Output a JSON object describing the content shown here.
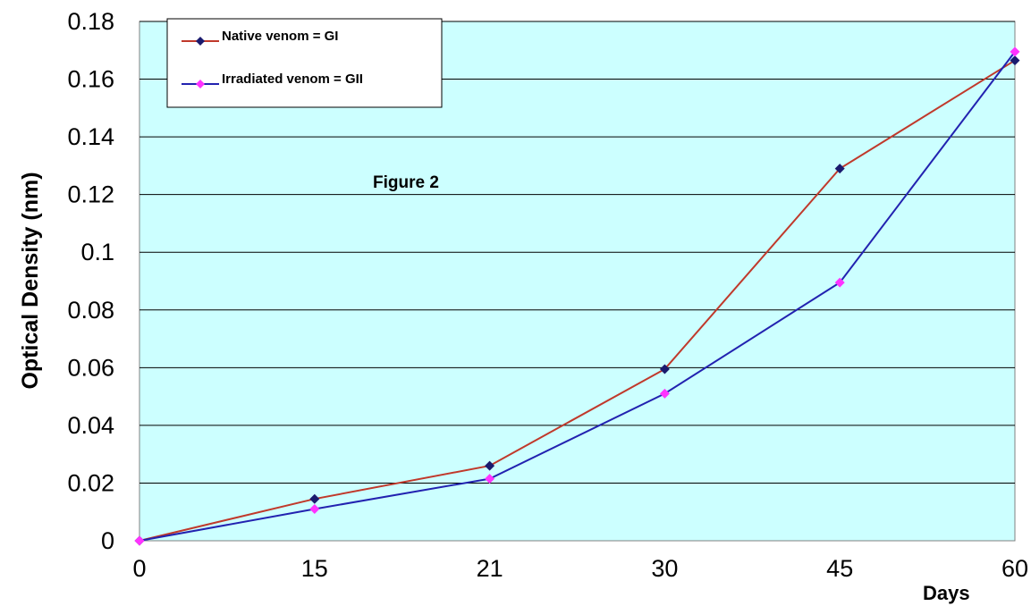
{
  "chart_data": {
    "type": "line",
    "title": "",
    "annotation": "Figure 2",
    "xlabel": "Days",
    "ylabel": "Optical Density  (nm)",
    "x": [
      0,
      15,
      21,
      30,
      45,
      60
    ],
    "x_tick_labels": [
      "0",
      "15",
      "21",
      "30",
      "45",
      "60"
    ],
    "y_ticks": [
      0,
      0.02,
      0.04,
      0.06,
      0.08,
      0.1,
      0.12,
      0.14,
      0.16,
      0.18
    ],
    "y_tick_labels": [
      "0",
      "0.02",
      "0.04",
      "0.06",
      "0.08",
      "0.1",
      "0.12",
      "0.14",
      "0.16",
      "0.18"
    ],
    "ylim": [
      0,
      0.18
    ],
    "x_spacing": "categorical-evenly-spaced",
    "grid": "horizontal",
    "legend_placement": "top-left",
    "plot_background": "#ccffff",
    "series": [
      {
        "name": "Native venom = GI",
        "values": [
          0,
          0.0145,
          0.026,
          0.0595,
          0.129,
          0.1665
        ],
        "line_color": "#c0392b",
        "marker_color": "#1a1a6e",
        "marker": "diamond"
      },
      {
        "name": "Irradiated venom = GII",
        "values": [
          0,
          0.011,
          0.0215,
          0.051,
          0.0895,
          0.1695
        ],
        "line_color": "#2222b0",
        "marker_color": "#ff33ff",
        "marker": "diamond"
      }
    ]
  }
}
